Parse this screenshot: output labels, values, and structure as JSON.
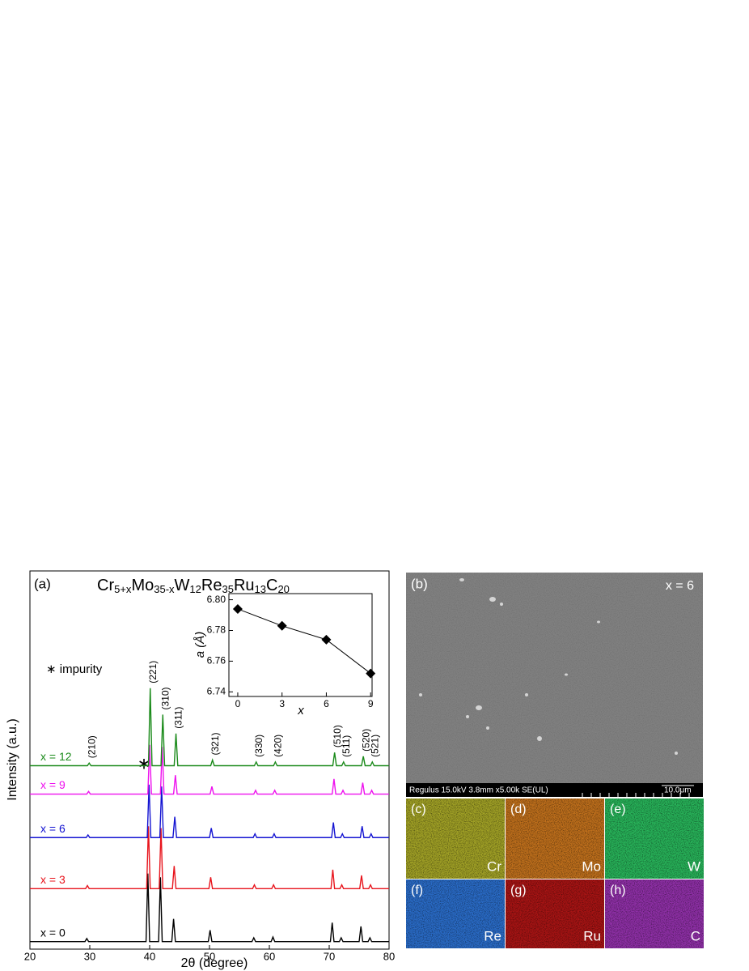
{
  "chart_data": [
    {
      "type": "line",
      "panel_label": "(a)",
      "formula": [
        [
          "Cr",
          "5+x"
        ],
        [
          "Mo",
          "35-x"
        ],
        [
          "W",
          "12"
        ],
        [
          "Re",
          "35"
        ],
        [
          "Ru",
          "13"
        ],
        [
          "C",
          "20"
        ]
      ],
      "x_label": "2θ (degree)",
      "y_label": "Intensity (a.u.)",
      "impurity_marker": "∗",
      "impurity_note": "∗ impurity",
      "peak_labels": [
        "(210)",
        "(221)",
        "(310)",
        "(311)",
        "(321)",
        "(330)",
        "(420)",
        "(510)",
        "(511)",
        "(520)",
        "(521)"
      ],
      "xlim": [
        20,
        80
      ],
      "xticks": [
        20,
        30,
        40,
        50,
        60,
        70,
        80
      ],
      "ylim": [
        0,
        100
      ],
      "series": [
        {
          "name": "x = 0",
          "color": "#000000",
          "x": [
            20,
            29.2,
            29.5,
            29.8,
            39.4,
            39.7,
            40.0,
            41.5,
            41.8,
            42.1,
            43.7,
            44.0,
            44.3,
            49.8,
            50.1,
            50.4,
            57.1,
            57.4,
            57.7,
            60.3,
            60.6,
            60.9,
            70.2,
            70.5,
            70.8,
            71.7,
            72.0,
            72.3,
            75.0,
            75.3,
            75.6,
            76.5,
            76.8,
            77.1,
            80
          ],
          "values": [
            2,
            2,
            2.8,
            2,
            2,
            20,
            2,
            2,
            19,
            2,
            2,
            8,
            2,
            2,
            5,
            2,
            2,
            3,
            2,
            2,
            3.2,
            2,
            2,
            7,
            2,
            2,
            3,
            2,
            2,
            6,
            2,
            2,
            3,
            2,
            2
          ]
        },
        {
          "name": "x = 3",
          "color": "#e8141c",
          "x": [
            20,
            29.3,
            29.6,
            29.9,
            39.5,
            39.8,
            40.1,
            41.6,
            41.9,
            42.2,
            43.8,
            44.1,
            44.4,
            49.9,
            50.2,
            50.5,
            57.2,
            57.5,
            57.8,
            60.4,
            60.7,
            61.0,
            70.3,
            70.6,
            70.9,
            71.8,
            72.1,
            72.4,
            75.1,
            75.4,
            75.7,
            76.6,
            76.9,
            77.2,
            80
          ],
          "values": [
            16,
            16,
            16.8,
            16,
            16,
            32.5,
            16,
            16,
            32,
            16,
            16,
            22,
            16,
            16,
            19,
            16,
            16,
            17,
            16,
            16,
            17,
            16,
            16,
            21,
            16,
            16,
            17,
            16,
            16,
            19.5,
            16,
            16,
            17,
            16,
            16
          ]
        },
        {
          "name": "x = 6",
          "color": "#1414d2",
          "x": [
            20,
            29.4,
            29.7,
            30.0,
            39.6,
            39.9,
            40.2,
            41.7,
            42.0,
            42.3,
            43.9,
            44.2,
            44.5,
            50.0,
            50.3,
            50.6,
            57.3,
            57.6,
            57.9,
            60.5,
            60.8,
            61.1,
            70.4,
            70.7,
            71.0,
            71.9,
            72.2,
            72.5,
            75.2,
            75.5,
            75.8,
            76.7,
            77.0,
            77.3,
            80
          ],
          "values": [
            29.5,
            29.5,
            30.2,
            29.5,
            29.5,
            43.5,
            29.5,
            29.5,
            43,
            29.5,
            29.5,
            35,
            29.5,
            29.5,
            32,
            29.5,
            29.5,
            30.5,
            29.5,
            29.5,
            30.5,
            29.5,
            29.5,
            33.5,
            29.5,
            29.5,
            30.5,
            29.5,
            29.5,
            32.5,
            29.5,
            29.5,
            30.5,
            29.5,
            29.5
          ]
        },
        {
          "name": "x = 9",
          "color": "#ee10ee",
          "x": [
            20,
            29.5,
            29.8,
            30.1,
            39.7,
            40.0,
            40.3,
            41.8,
            42.1,
            42.4,
            44.0,
            44.3,
            44.6,
            50.1,
            50.4,
            50.7,
            57.4,
            57.7,
            58.0,
            60.6,
            60.9,
            61.2,
            70.5,
            70.8,
            71.1,
            72.0,
            72.3,
            72.6,
            75.3,
            75.6,
            75.9,
            76.8,
            77.1,
            77.4,
            80
          ],
          "values": [
            41,
            41,
            41.7,
            41,
            41,
            54,
            41,
            41,
            53.5,
            41,
            41,
            46,
            41,
            41,
            43,
            41,
            41,
            42,
            41,
            41,
            42,
            41,
            41,
            45,
            41,
            41,
            42,
            41,
            41,
            44,
            41,
            41,
            42,
            41,
            41
          ]
        },
        {
          "name": "x = 12",
          "color": "#1a8a1a",
          "x": [
            20,
            29.6,
            29.9,
            30.2,
            39.8,
            40.1,
            40.4,
            41.9,
            42.2,
            42.5,
            44.1,
            44.4,
            44.7,
            50.2,
            50.5,
            50.8,
            57.5,
            57.8,
            58.1,
            60.7,
            61.0,
            61.3,
            70.6,
            70.9,
            71.2,
            72.1,
            72.4,
            72.7,
            75.4,
            75.7,
            76.0,
            76.9,
            77.2,
            77.5,
            80
          ],
          "values": [
            48.5,
            48.5,
            49.2,
            48.5,
            48.5,
            69,
            48.5,
            48.5,
            62,
            48.5,
            48.5,
            57,
            48.5,
            48.5,
            50,
            48.5,
            48.5,
            49.5,
            48.5,
            48.5,
            49.5,
            48.5,
            48.5,
            52,
            48.5,
            48.5,
            49.5,
            48.5,
            48.5,
            51,
            48.5,
            48.5,
            49.5,
            48.5,
            48.5
          ]
        }
      ]
    },
    {
      "type": "line",
      "marker": "diamond",
      "x_label": "x",
      "y_label": "a (Å)",
      "xlim": [
        -0.6,
        9.1
      ],
      "xticks": [
        0,
        3,
        6,
        9
      ],
      "ylim": [
        6.737,
        6.804
      ],
      "yticks": [
        6.74,
        6.76,
        6.78,
        {
          "value": 6.8,
          "label": "6.80"
        }
      ],
      "series": [
        {
          "color": "#000000",
          "x": [
            0,
            3,
            6,
            9
          ],
          "values": [
            6.794,
            6.783,
            6.774,
            6.752
          ]
        }
      ]
    }
  ],
  "micrographs": {
    "label": "(b)",
    "note": "x = 6",
    "info": "Regulus 15.0kV 3.8mm x5.00k SE(UL)",
    "scale": "10.0μm",
    "maps": [
      {
        "label": "(c)",
        "element": "Cr"
      },
      {
        "label": "(d)",
        "element": "Mo"
      },
      {
        "label": "(e)",
        "element": "W"
      },
      {
        "label": "(f)",
        "element": "Re"
      },
      {
        "label": "(g)",
        "element": "Ru"
      },
      {
        "label": "(h)",
        "element": "C"
      }
    ]
  }
}
